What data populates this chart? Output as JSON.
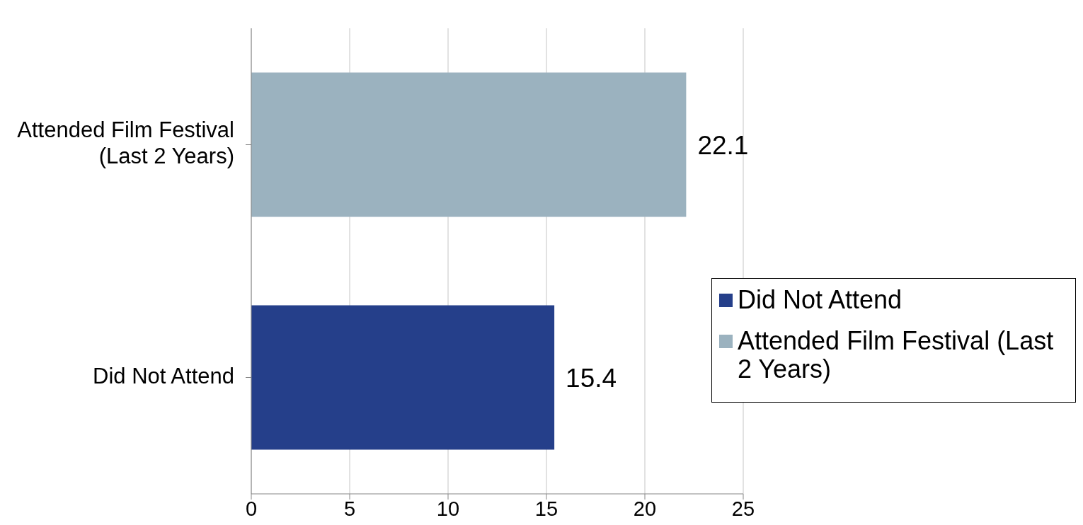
{
  "chart_data": {
    "type": "bar",
    "orientation": "horizontal",
    "stacked": true,
    "categories": [
      "Attended Film Festival (Last 2 Years)",
      "Did Not Attend"
    ],
    "series": [
      {
        "name": "Did Not Attend",
        "color": "#253f8a",
        "values": [
          null,
          15.4
        ]
      },
      {
        "name": "Attended Film Festival (Last 2 Years)",
        "color": "#9bb2bf",
        "values": [
          22.1,
          null
        ]
      }
    ],
    "xlim": [
      0,
      25
    ],
    "xticks": [
      0,
      5,
      10,
      15,
      20,
      25
    ],
    "grid": "x",
    "legend": "right",
    "data_labels": true
  }
}
